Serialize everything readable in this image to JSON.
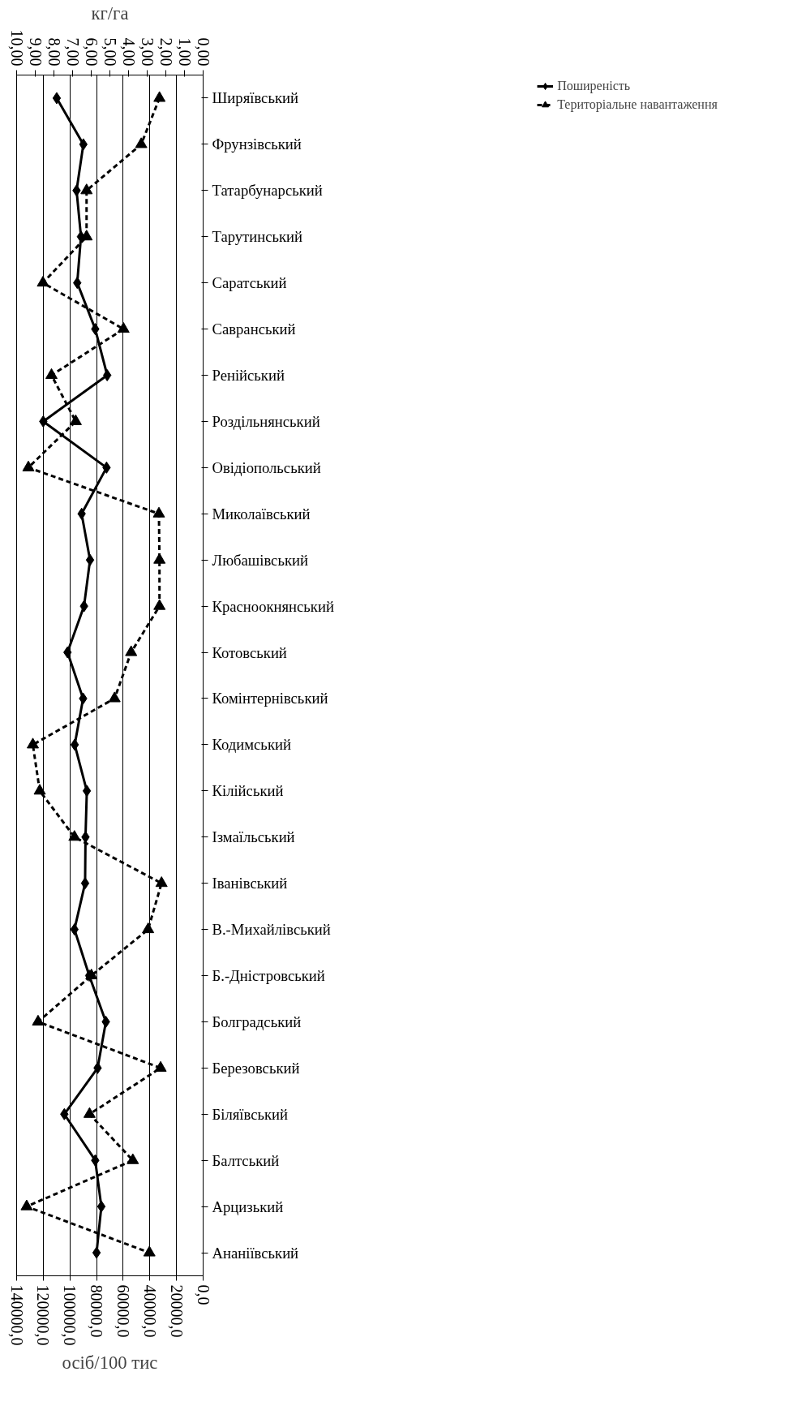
{
  "chart_data": {
    "type": "line",
    "orientation": "horizontal",
    "xlabel": "осіб/100 тис",
    "x2label": "кг/га",
    "categories": [
      "Ширяївський",
      "Фрунзівський",
      "Татарбунарський",
      "Тарутинський",
      "Саратський",
      "Савранський",
      "Ренійський",
      "Роздільнянський",
      "Овідіопольський",
      "Миколаївський",
      "Любашівський",
      "Красноокнянський",
      "Котовський",
      "Комінтернівський",
      "Кодимський",
      "Кілійський",
      "Ізмаїльський",
      "Іванівський",
      "В.-Михайлівський",
      "Б.-Дністровський",
      "Болградський",
      "Березовський",
      "Біляївський",
      "Балтський",
      "Арцизький",
      "Ананіївський"
    ],
    "series": [
      {
        "name": "Поширеність",
        "color": "#000000",
        "marker": "diamond",
        "line_style": "solid",
        "values": [
          109900,
          89900,
          95000,
          91700,
          94500,
          81000,
          72000,
          120000,
          72500,
          91200,
          84900,
          89400,
          101800,
          90100,
          96400,
          87300,
          88300,
          88600,
          96600,
          85500,
          73000,
          79200,
          104200,
          81000,
          76400,
          80000
        ]
      },
      {
        "name": "Територіальне навантаження",
        "color": "#000000",
        "marker": "triangle",
        "line_style": "dashed",
        "axis": "x2",
        "values": [
          2.34,
          3.32,
          6.25,
          6.25,
          8.59,
          4.27,
          8.13,
          6.83,
          9.37,
          2.37,
          2.34,
          2.34,
          3.86,
          4.75,
          9.13,
          8.76,
          6.9,
          2.23,
          2.95,
          5.99,
          8.85,
          2.28,
          6.09,
          3.77,
          9.46,
          2.88
        ]
      }
    ],
    "xlim": [
      140000,
      0
    ],
    "xticks": [
      {
        "value": 0,
        "label": "0,0"
      },
      {
        "value": 20000,
        "label": "20000,0"
      },
      {
        "value": 40000,
        "label": "40000,0"
      },
      {
        "value": 60000,
        "label": "60000,0"
      },
      {
        "value": 80000,
        "label": "80000,0"
      },
      {
        "value": 100000,
        "label": "100000,0"
      },
      {
        "value": 120000,
        "label": "120000,0"
      },
      {
        "value": 140000,
        "label": "140000,0"
      }
    ],
    "x2lim": [
      10,
      0
    ],
    "x2ticks": [
      {
        "value": 0,
        "label": "0,00"
      },
      {
        "value": 1,
        "label": "1,00"
      },
      {
        "value": 2,
        "label": "2,00"
      },
      {
        "value": 3,
        "label": "3,00"
      },
      {
        "value": 4,
        "label": "4,00"
      },
      {
        "value": 5,
        "label": "5,00"
      },
      {
        "value": 6,
        "label": "6,00"
      },
      {
        "value": 7,
        "label": "7,00"
      },
      {
        "value": 8,
        "label": "8,00"
      },
      {
        "value": 9,
        "label": "9,00"
      },
      {
        "value": 10,
        "label": "10,00"
      }
    ],
    "grid": "x",
    "legend": "right"
  }
}
